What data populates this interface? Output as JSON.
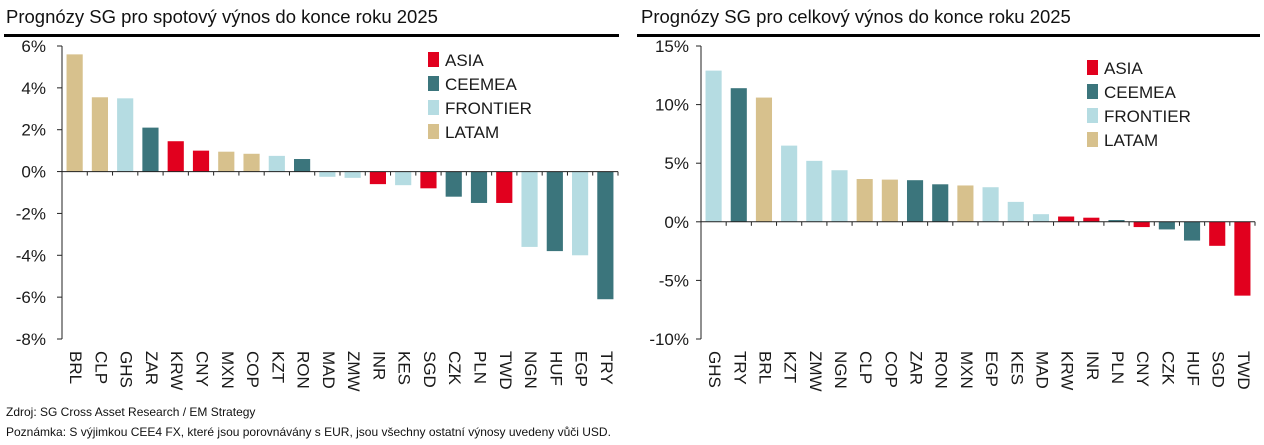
{
  "colors": {
    "ASIA": "#e1001e",
    "CEEMEA": "#3b757c",
    "FRONTIER": "#b5dce2",
    "LATAM": "#d7c18d"
  },
  "legend": [
    "ASIA",
    "CEEMEA",
    "FRONTIER",
    "LATAM"
  ],
  "chart_data": [
    {
      "type": "bar",
      "title": "Prognózy SG pro spotový výnos do konce roku 2025",
      "ylim": [
        -8,
        6
      ],
      "yticks": [
        6,
        4,
        2,
        0,
        -2,
        -4,
        -6,
        -8
      ],
      "ytick_labels": [
        "6%",
        "4%",
        "2%",
        "0%",
        "-2%",
        "-4%",
        "-6%",
        "-8%"
      ],
      "legend_position": "top-right",
      "categories": [
        "BRL",
        "CLP",
        "GHS",
        "ZAR",
        "KRW",
        "CNY",
        "MXN",
        "COP",
        "KZT",
        "RON",
        "MAD",
        "ZMW",
        "INR",
        "KES",
        "SGD",
        "CZK",
        "PLN",
        "TWD",
        "NGN",
        "HUF",
        "EGP",
        "TRY"
      ],
      "values": [
        5.6,
        3.55,
        3.5,
        2.1,
        1.45,
        1.0,
        0.95,
        0.85,
        0.75,
        0.6,
        -0.25,
        -0.3,
        -0.6,
        -0.65,
        -0.8,
        -1.2,
        -1.5,
        -1.5,
        -3.6,
        -3.8,
        -4.0,
        -6.1
      ],
      "groups": [
        "LATAM",
        "LATAM",
        "FRONTIER",
        "CEEMEA",
        "ASIA",
        "ASIA",
        "LATAM",
        "LATAM",
        "FRONTIER",
        "CEEMEA",
        "FRONTIER",
        "FRONTIER",
        "ASIA",
        "FRONTIER",
        "ASIA",
        "CEEMEA",
        "CEEMEA",
        "ASIA",
        "FRONTIER",
        "CEEMEA",
        "FRONTIER",
        "CEEMEA"
      ]
    },
    {
      "type": "bar",
      "title": "Prognózy SG pro celkový výnos do konce roku 2025",
      "ylim": [
        -10,
        15
      ],
      "yticks": [
        15,
        10,
        5,
        0,
        -5,
        -10
      ],
      "ytick_labels": [
        "15%",
        "10%",
        "5%",
        "0%",
        "-5%",
        "-10%"
      ],
      "legend_position": "top-right",
      "categories": [
        "GHS",
        "TRY",
        "BRL",
        "KZT",
        "ZMW",
        "NGN",
        "CLP",
        "COP",
        "ZAR",
        "RON",
        "MXN",
        "EGP",
        "KES",
        "MAD",
        "KRW",
        "INR",
        "PLN",
        "CNY",
        "CZK",
        "HUF",
        "SGD",
        "TWD"
      ],
      "values": [
        12.9,
        11.4,
        10.6,
        6.5,
        5.2,
        4.4,
        3.65,
        3.6,
        3.55,
        3.2,
        3.1,
        2.95,
        1.7,
        0.65,
        0.45,
        0.35,
        0.15,
        -0.45,
        -0.65,
        -1.6,
        -2.05,
        -6.3
      ],
      "groups": [
        "FRONTIER",
        "CEEMEA",
        "LATAM",
        "FRONTIER",
        "FRONTIER",
        "FRONTIER",
        "LATAM",
        "LATAM",
        "CEEMEA",
        "CEEMEA",
        "LATAM",
        "FRONTIER",
        "FRONTIER",
        "FRONTIER",
        "ASIA",
        "ASIA",
        "CEEMEA",
        "ASIA",
        "CEEMEA",
        "CEEMEA",
        "ASIA",
        "ASIA"
      ]
    }
  ],
  "footer": {
    "source": "Zdroj: SG Cross Asset Research / EM Strategy",
    "note": "Poznámka: S výjimkou CEE4 FX, které jsou porovnávány s EUR, jsou všechny ostatní výnosy uvedeny vůči USD."
  }
}
